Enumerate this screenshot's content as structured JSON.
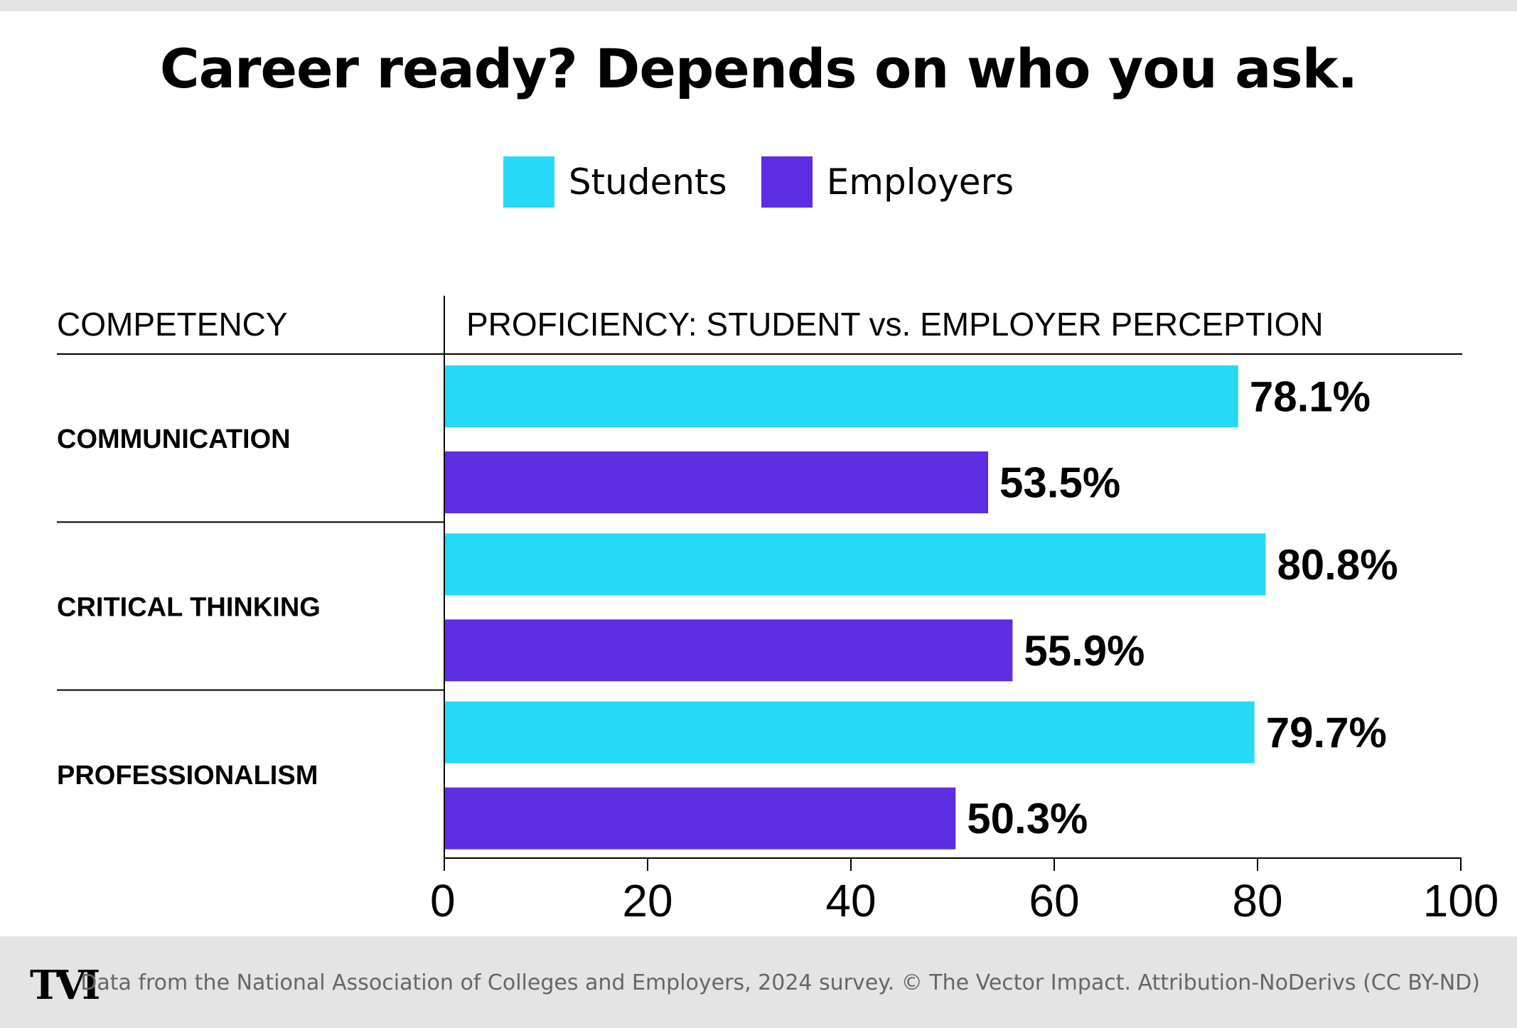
{
  "title": "Career ready? Depends on who you ask.",
  "legend": [
    {
      "label": "Students",
      "color": "#26d9f6"
    },
    {
      "label": "Employers",
      "color": "#5d2de1"
    }
  ],
  "headers": {
    "competency": "COMPETENCY",
    "proficiency": "PROFICIENCY: STUDENT vs. EMPLOYER PERCEPTION"
  },
  "chart_data": {
    "type": "bar",
    "orientation": "horizontal",
    "categories": [
      "COMMUNICATION",
      "CRITICAL THINKING",
      "PROFESSIONALISM"
    ],
    "series": [
      {
        "name": "Students",
        "values": [
          78.1,
          80.8,
          79.7
        ],
        "color": "#26d9f6"
      },
      {
        "name": "Employers",
        "values": [
          53.5,
          55.9,
          50.3
        ],
        "color": "#5d2de1"
      }
    ],
    "data_labels": [
      [
        "78.1%",
        "53.5%"
      ],
      [
        "80.8%",
        "55.9%"
      ],
      [
        "79.7%",
        "50.3%"
      ]
    ],
    "xlim": [
      0,
      100
    ],
    "xticks": [
      0,
      20,
      40,
      60,
      80,
      100
    ],
    "legend_position": "top-center",
    "grid": false
  },
  "footer": {
    "logo": "TVI",
    "source": "Data from the National Association of Colleges and Employers, 2024 survey. © The Vector Impact. Attribution-NoDerivs (CC BY-ND)"
  }
}
